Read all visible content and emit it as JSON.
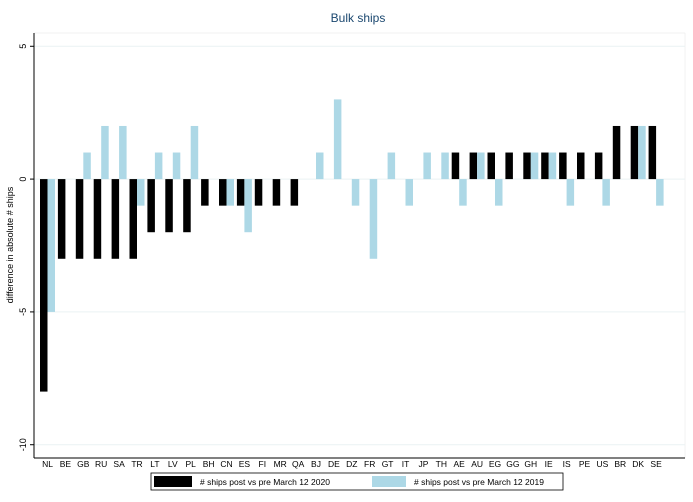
{
  "chart_data": {
    "type": "bar",
    "title": "Bulk ships",
    "ylabel": "difference in absolute # ships",
    "xlabel": "",
    "ylim": [
      -10.5,
      5.5
    ],
    "yticks": [
      5,
      0,
      -5,
      -10
    ],
    "grid": true,
    "legend_position": "bottom",
    "categories": [
      "NL",
      "BE",
      "GB",
      "RU",
      "SA",
      "TR",
      "LT",
      "LV",
      "PL",
      "BH",
      "CN",
      "ES",
      "FI",
      "MR",
      "QA",
      "BJ",
      "DE",
      "DZ",
      "FR",
      "GT",
      "IT",
      "JP",
      "TH",
      "AE",
      "AU",
      "EG",
      "GG",
      "GH",
      "IE",
      "IS",
      "PE",
      "US",
      "BR",
      "DK",
      "SE"
    ],
    "series": [
      {
        "name": "# ships post vs pre March 12 2020",
        "color": "#000000",
        "values": [
          -8,
          -3,
          -3,
          -3,
          -3,
          -3,
          -2,
          -2,
          -2,
          -1,
          -1,
          -1,
          -1,
          -1,
          -1,
          0,
          0,
          0,
          0,
          0,
          0,
          0,
          0,
          1,
          1,
          1,
          1,
          1,
          1,
          1,
          1,
          1,
          2,
          2,
          2
        ]
      },
      {
        "name": "# ships post vs pre March 12 2019",
        "color": "#add8e6",
        "values": [
          -5,
          0,
          1,
          2,
          2,
          -1,
          1,
          1,
          2,
          0,
          -1,
          -2,
          0,
          0,
          0,
          1,
          3,
          -1,
          -3,
          1,
          -1,
          1,
          1,
          -1,
          1,
          -1,
          0,
          1,
          1,
          -1,
          0,
          -1,
          0,
          2,
          -1
        ]
      }
    ]
  }
}
